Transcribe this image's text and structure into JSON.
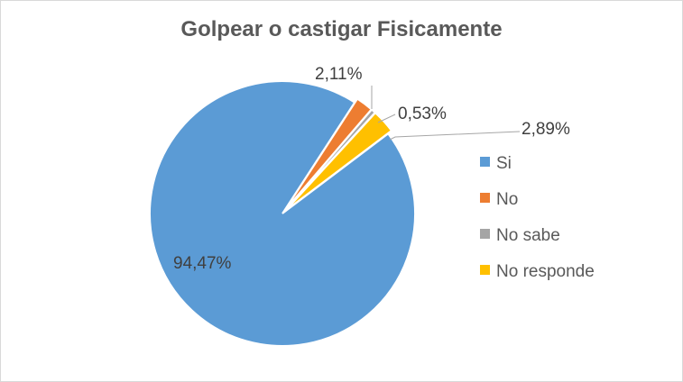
{
  "chart_data": {
    "type": "pie",
    "title": "Golpear o castigar Fisicamente",
    "categories": [
      "Si",
      "No",
      "No sabe",
      "No responde"
    ],
    "values": [
      94.47,
      2.11,
      0.53,
      2.89
    ],
    "data_labels": [
      "94,47%",
      "2,11%",
      "0,53%",
      "2,89%"
    ],
    "colors": [
      "#5b9bd5",
      "#ed7d31",
      "#a5a5a5",
      "#ffc000"
    ],
    "legend_position": "right"
  }
}
